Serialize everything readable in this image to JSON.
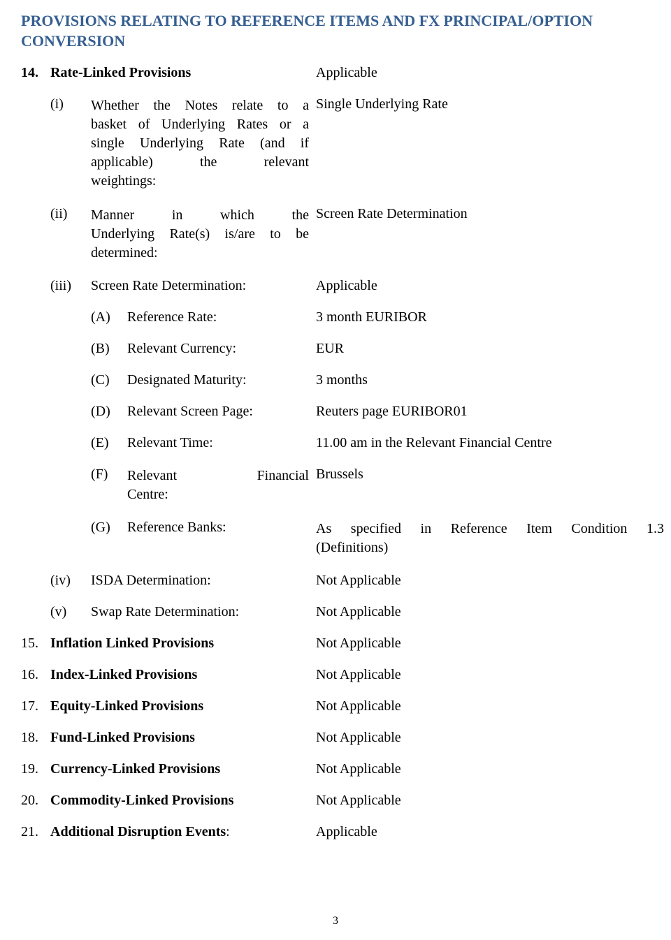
{
  "heading": "PROVISIONS RELATING TO REFERENCE ITEMS AND FX PRINCIPAL/OPTION CONVERSION",
  "item14": {
    "num": "14.",
    "title": "Rate-Linked Provisions",
    "value": "Applicable",
    "i": {
      "roman": "(i)",
      "label_line1": "Whether the Notes relate to a",
      "label_line2": "basket of Underlying Rates or a",
      "label_line3": "single Underlying Rate (and if",
      "label_line4": "applicable)    the    relevant",
      "label_line5": "weightings:",
      "value": "Single Underlying Rate"
    },
    "ii": {
      "roman": "(ii)",
      "label_line1": "Manner    in    which    the",
      "label_line2": "Underlying Rate(s) is/are to be",
      "label_line3": "determined:",
      "value": "Screen Rate Determination"
    },
    "iii": {
      "roman": "(iii)",
      "label": "Screen Rate Determination:",
      "value": "Applicable",
      "A": {
        "letter": "(A)",
        "label": "Reference Rate:",
        "value": "3 month EURIBOR"
      },
      "B": {
        "letter": "(B)",
        "label": "Relevant Currency:",
        "value": "EUR"
      },
      "C": {
        "letter": "(C)",
        "label": "Designated Maturity:",
        "value": "3 months"
      },
      "D": {
        "letter": "(D)",
        "label": "Relevant Screen Page:",
        "value": "Reuters page EURIBOR01"
      },
      "E": {
        "letter": "(E)",
        "label": "Relevant Time:",
        "value": "11.00 am in the Relevant Financial Centre"
      },
      "F": {
        "letter": "(F)",
        "label_w1": "Relevant",
        "label_w2": "Financial",
        "label_line2": "Centre:",
        "value": "Brussels"
      },
      "G": {
        "letter": "(G)",
        "label": "Reference Banks:",
        "value_line": "As  specified  in  Reference  Item  Condition  1.3",
        "value_line2": "(Definitions)"
      }
    },
    "iv": {
      "roman": "(iv)",
      "label": "ISDA Determination:",
      "value": "Not Applicable"
    },
    "v": {
      "roman": "(v)",
      "label": "Swap Rate Determination:",
      "value": "Not Applicable"
    }
  },
  "item15": {
    "num": "15.",
    "title": "Inflation Linked Provisions",
    "value": "Not Applicable"
  },
  "item16": {
    "num": "16.",
    "title": "Index-Linked Provisions",
    "value": "Not Applicable"
  },
  "item17": {
    "num": "17.",
    "title": "Equity-Linked Provisions",
    "value": "Not Applicable"
  },
  "item18": {
    "num": "18.",
    "title": "Fund-Linked Provisions",
    "value": "Not Applicable"
  },
  "item19": {
    "num": "19.",
    "title": "Currency-Linked Provisions",
    "value": "Not Applicable"
  },
  "item20": {
    "num": "20.",
    "title": "Commodity-Linked Provisions",
    "value": "Not Applicable"
  },
  "item21": {
    "num": "21.",
    "title": "Additional Disruption Events:",
    "value": "Applicable"
  },
  "pagenum": "3",
  "colors": {
    "heading": "#365f91",
    "text": "#000000",
    "bg": "#ffffff"
  }
}
